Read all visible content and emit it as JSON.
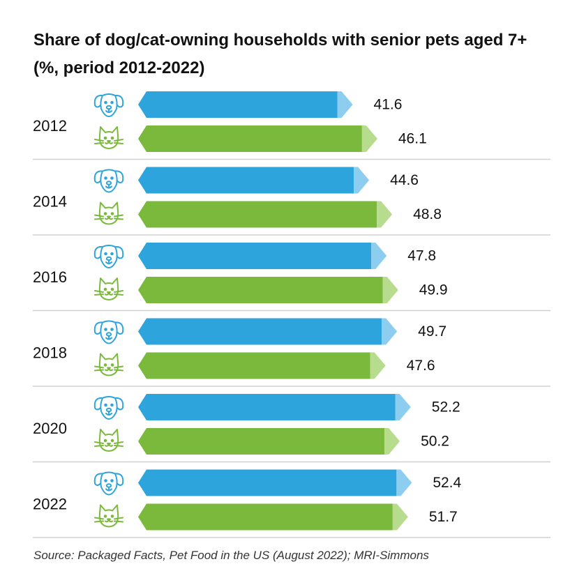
{
  "title": "Share of dog/cat-owning households with senior pets aged 7+ (%, period 2012-2022)",
  "source": "Source: Packaged Facts, Pet Food in the US (August 2022); MRI-Simmons",
  "colors": {
    "dog": "#2ea4dc",
    "dog_tip": "#8ccdf0",
    "cat": "#7ab93b",
    "cat_tip": "#b8dc8e",
    "dog_icon": "#2ea4dc",
    "cat_icon": "#7ab93b",
    "divider": "#d0d0d0"
  },
  "chart_data": {
    "type": "bar",
    "orientation": "horizontal",
    "categories": [
      "2012",
      "2014",
      "2016",
      "2018",
      "2020",
      "2022"
    ],
    "series": [
      {
        "icon": "dog-icon",
        "values": [
          41.6,
          44.6,
          47.8,
          49.7,
          52.2,
          52.4
        ]
      },
      {
        "icon": "cat-icon",
        "values": [
          46.1,
          48.8,
          49.9,
          47.6,
          50.2,
          51.7
        ]
      }
    ]
  }
}
